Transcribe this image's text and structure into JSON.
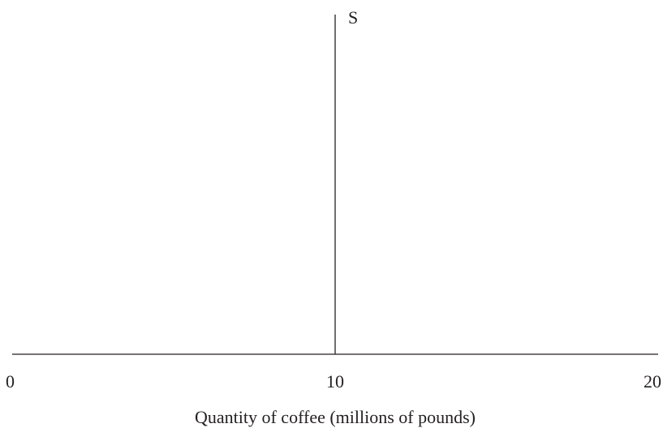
{
  "chart_data": {
    "type": "line",
    "title": "",
    "xlabel": "Quantity of coffee (millions of pounds)",
    "ylabel": "",
    "xlim": [
      0,
      20
    ],
    "x_ticks": [
      "0",
      "10",
      "20"
    ],
    "grid": false,
    "series": [
      {
        "name": "S",
        "x": [
          10,
          10
        ],
        "orientation": "vertical",
        "color": "#231f20"
      }
    ]
  }
}
